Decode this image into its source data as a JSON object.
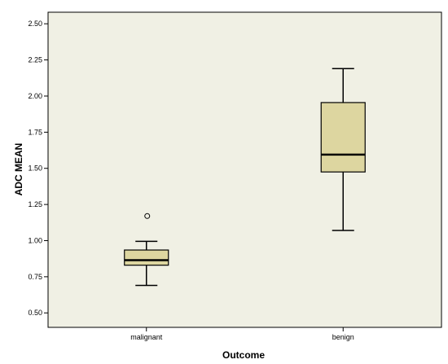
{
  "chart_data": {
    "type": "box",
    "title": "",
    "xlabel": "Outcome",
    "ylabel": "ADC  MEAN",
    "ylim": [
      0.4,
      2.58
    ],
    "yticks": [
      "0.50",
      "0.75",
      "1.00",
      "1.25",
      "1.50",
      "1.75",
      "2.00",
      "2.25",
      "2.50"
    ],
    "categories": [
      "malignant",
      "benign"
    ],
    "boxes": [
      {
        "category": "malignant",
        "min": 0.69,
        "q1": 0.83,
        "median": 0.865,
        "q3": 0.935,
        "max": 0.995,
        "outliers": [
          1.17
        ]
      },
      {
        "category": "benign",
        "min": 1.07,
        "q1": 1.475,
        "median": 1.595,
        "q3": 1.955,
        "max": 2.19,
        "outliers": []
      }
    ],
    "grid": false,
    "colors": {
      "plot_background": "#f0f0e4",
      "box_fill": "#ddd6a0",
      "stroke": "#000000"
    }
  }
}
